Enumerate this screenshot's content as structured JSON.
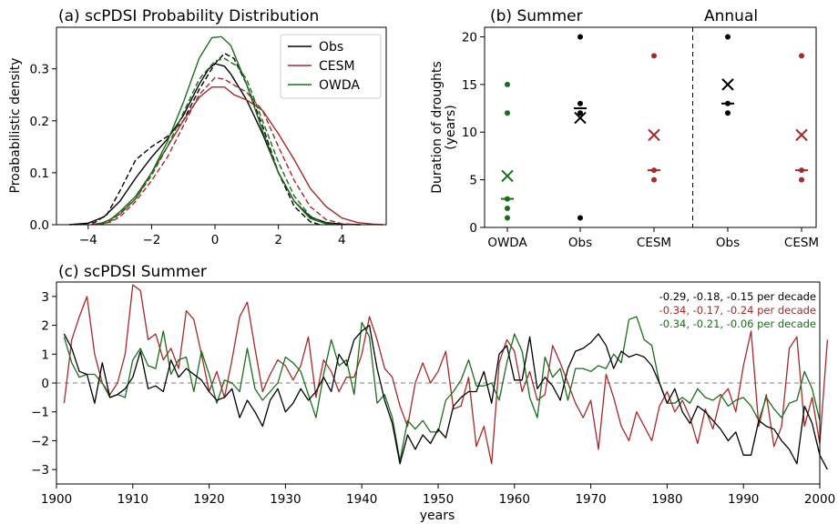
{
  "chart_data": [
    {
      "id": "a",
      "type": "line",
      "title": "(a) scPDSI Probability Distribution",
      "xlabel": "",
      "ylabel": "Proababilistic density",
      "xlim": [
        -5,
        5.4
      ],
      "ylim": [
        0,
        0.38
      ],
      "xticks": [
        -4,
        -2,
        0,
        2,
        4
      ],
      "yticks": [
        0.0,
        0.1,
        0.2,
        0.3
      ],
      "legend_position": "top-right",
      "legend": [
        {
          "name": "Obs",
          "color": "#000000"
        },
        {
          "name": "CESM",
          "color": "#a52a2a"
        },
        {
          "name": "OWDA",
          "color": "#1a6e1a"
        }
      ],
      "series": [
        {
          "name": "Obs",
          "style": "solid",
          "color": "#000000",
          "x": [
            -4.6,
            -4,
            -3.5,
            -3,
            -2.5,
            -2,
            -1.5,
            -1,
            -0.5,
            -0.2,
            0,
            0.3,
            0.5,
            1,
            1.5,
            2,
            2.5,
            3,
            3.5,
            4,
            4.6
          ],
          "y": [
            0,
            0.003,
            0.015,
            0.045,
            0.09,
            0.13,
            0.165,
            0.21,
            0.27,
            0.3,
            0.31,
            0.305,
            0.29,
            0.24,
            0.175,
            0.1,
            0.045,
            0.015,
            0.004,
            0.001,
            0
          ]
        },
        {
          "name": "Obs",
          "style": "dashed",
          "color": "#000000",
          "x": [
            -4.4,
            -3.8,
            -3.4,
            -3,
            -2.5,
            -2,
            -1.5,
            -1,
            -0.5,
            0,
            0.3,
            0.6,
            1,
            1.5,
            2,
            2.5,
            3,
            3.3
          ],
          "y": [
            0,
            0.004,
            0.02,
            0.065,
            0.125,
            0.15,
            0.17,
            0.2,
            0.26,
            0.31,
            0.33,
            0.32,
            0.27,
            0.19,
            0.1,
            0.035,
            0.006,
            0
          ]
        },
        {
          "name": "CESM",
          "style": "solid",
          "color": "#a52a2a",
          "x": [
            -3.9,
            -3.5,
            -3,
            -2.5,
            -2,
            -1.5,
            -1,
            -0.5,
            -0.1,
            0.3,
            0.6,
            1,
            1.5,
            2,
            2.5,
            3,
            3.5,
            4,
            4.5,
            5,
            5.3
          ],
          "y": [
            0,
            0.004,
            0.02,
            0.05,
            0.1,
            0.15,
            0.2,
            0.245,
            0.265,
            0.265,
            0.25,
            0.24,
            0.22,
            0.175,
            0.125,
            0.07,
            0.035,
            0.013,
            0.004,
            0.001,
            0
          ]
        },
        {
          "name": "CESM",
          "style": "dashed",
          "color": "#a52a2a",
          "x": [
            -3.7,
            -3.3,
            -3,
            -2.5,
            -2,
            -1.5,
            -1,
            -0.5,
            0,
            0.3,
            0.7,
            1,
            1.5,
            2,
            2.5,
            3,
            3.5,
            4,
            4.5
          ],
          "y": [
            0,
            0.005,
            0.015,
            0.045,
            0.085,
            0.13,
            0.19,
            0.25,
            0.283,
            0.28,
            0.265,
            0.255,
            0.22,
            0.15,
            0.085,
            0.035,
            0.01,
            0.002,
            0
          ]
        },
        {
          "name": "OWDA",
          "style": "solid",
          "color": "#1a6e1a",
          "x": [
            -3.7,
            -3.3,
            -3,
            -2.5,
            -2,
            -1.5,
            -1,
            -0.5,
            -0.1,
            0.2,
            0.5,
            1,
            1.5,
            2,
            2.5,
            3,
            3.5,
            3.9
          ],
          "y": [
            0,
            0.01,
            0.025,
            0.055,
            0.1,
            0.16,
            0.235,
            0.32,
            0.36,
            0.362,
            0.345,
            0.27,
            0.18,
            0.1,
            0.045,
            0.012,
            0.002,
            0
          ]
        },
        {
          "name": "OWDA",
          "style": "dashed",
          "color": "#1a6e1a",
          "x": [
            -3.6,
            -3.2,
            -3,
            -2.5,
            -2,
            -1.5,
            -1,
            -0.5,
            0,
            0.3,
            0.7,
            1,
            1.5,
            2,
            2.5,
            3,
            3.4,
            3.8
          ],
          "y": [
            0,
            0.01,
            0.022,
            0.05,
            0.095,
            0.15,
            0.215,
            0.28,
            0.315,
            0.32,
            0.305,
            0.28,
            0.2,
            0.12,
            0.055,
            0.017,
            0.004,
            0
          ]
        }
      ]
    },
    {
      "id": "b",
      "type": "scatter",
      "title": "(b) Summer",
      "title2": "Annual",
      "xlabel": "",
      "ylabel": "Duration of droughts (years)",
      "ylabel_lines": [
        "Duration of droughts",
        "(years)"
      ],
      "ylim": [
        0,
        21
      ],
      "yticks": [
        0,
        5,
        10,
        15,
        20
      ],
      "categories": [
        "OWDA",
        "Obs",
        "CESM",
        "Obs",
        "CESM"
      ],
      "separator_after_index": 2,
      "groups": [
        {
          "category": "OWDA",
          "color": "#1a6e1a",
          "points": [
            1,
            2,
            3,
            12,
            15
          ],
          "median": 3,
          "mean": 5.4
        },
        {
          "category": "Obs",
          "color": "#000000",
          "points": [
            1,
            12,
            13,
            20
          ],
          "median": 12.5,
          "mean": 11.5
        },
        {
          "category": "CESM",
          "color": "#a52a2a",
          "points": [
            5,
            6,
            18
          ],
          "median": 6,
          "mean": 9.7
        },
        {
          "category": "Obs",
          "color": "#000000",
          "points": [
            12,
            13,
            20
          ],
          "median": 13,
          "mean": 15
        },
        {
          "category": "CESM",
          "color": "#a52a2a",
          "points": [
            5,
            6,
            18
          ],
          "median": 6,
          "mean": 9.7
        }
      ]
    },
    {
      "id": "c",
      "type": "line",
      "title": "(c) scPDSI Summer",
      "xlabel": "years",
      "ylabel": "",
      "xlim": [
        1900,
        2000
      ],
      "ylim": [
        -3.5,
        3.5
      ],
      "xticks": [
        1900,
        1910,
        1920,
        1930,
        1940,
        1950,
        1960,
        1970,
        1980,
        1990,
        2000
      ],
      "yticks": [
        -3,
        -2,
        -1,
        0,
        1,
        2,
        3
      ],
      "zero_line": true,
      "annotations": [
        {
          "text": "-0.29, -0.18, -0.15 per decade",
          "color": "#000000"
        },
        {
          "text": "-0.34, -0.17, -0.24 per decade",
          "color": "#a52a2a"
        },
        {
          "text": "-0.34, -0.21, -0.06 per decade",
          "color": "#1a6e1a"
        }
      ],
      "x_start": 1901,
      "series": [
        {
          "name": "Obs",
          "color": "#000000",
          "values": [
            1.7,
            1.2,
            0.4,
            0.3,
            -0.7,
            0.7,
            -0.5,
            -0.4,
            -0.2,
            0.2,
            1.1,
            -0.2,
            -0.1,
            -0.3,
            0.8,
            0.2,
            0.5,
            0.3,
            0.1,
            -0.3,
            -0.6,
            -0.5,
            -0.2,
            -1.2,
            -0.6,
            -1.0,
            -1.5,
            -0.6,
            -0.2,
            -1.0,
            -0.7,
            -0.2,
            -0.6,
            -0.3,
            0.2,
            -0.3,
            1.0,
            0.6,
            1.5,
            1.8,
            2.0,
            0.5,
            -0.6,
            -1.4,
            -2.8,
            -1.8,
            -2.3,
            -1.8,
            -2.1,
            -1.6,
            -1.9,
            -0.8,
            -0.5,
            -0.3,
            -0.3,
            0.4,
            -0.7,
            1.0,
            1.3,
            0.1,
            0.1,
            1.6,
            -0.2,
            0.2,
            -0.1,
            -0.6,
            0.5,
            1.1,
            1.2,
            1.4,
            1.7,
            1.3,
            0.5,
            1.1,
            0.9,
            1.0,
            0.9,
            0.6,
            0.0,
            -0.7,
            -0.2,
            -1.0,
            -1.4,
            -0.8,
            -1.0,
            -1.3,
            -1.6,
            -2.0,
            -1.7,
            -2.5,
            -2.5,
            -1.3,
            -1.5,
            -1.6,
            -2.0,
            -2.3,
            -2.8,
            -0.8,
            -1.4,
            -2.5,
            -3.0
          ]
        },
        {
          "name": "CESM",
          "color": "#a52a2a",
          "values": [
            -0.7,
            1.5,
            2.3,
            3.0,
            1.0,
            0.0,
            -0.4,
            0.0,
            1.0,
            3.4,
            3.2,
            1.5,
            1.7,
            0.8,
            1.2,
            0.5,
            2.5,
            2.2,
            1.0,
            -0.3,
            0.4,
            -0.5,
            0.8,
            2.3,
            2.8,
            1.2,
            -0.3,
            0.3,
            0.8,
            0.6,
            0.1,
            0.6,
            1.6,
            -0.5,
            0.8,
            0.4,
            -0.3,
            0.2,
            0.2,
            1.0,
            2.3,
            1.5,
            0.5,
            0.2,
            -0.8,
            -1.5,
            0.0,
            0.7,
            0.0,
            0.4,
            1.1,
            -0.9,
            -0.8,
            0.2,
            -2.2,
            -1.5,
            -2.8,
            0.7,
            1.5,
            1.1,
            -0.3,
            0.4,
            -0.6,
            -0.4,
            1.3,
            0.7,
            0.0,
            -0.7,
            -1.2,
            -0.6,
            -2.3,
            0.3,
            -0.5,
            -1.5,
            -2.0,
            -1.0,
            -1.5,
            -2.0,
            -0.8,
            -0.3,
            -1.0,
            -0.6,
            -1.2,
            -2.1,
            -0.9,
            -1.6,
            -0.5,
            -0.2,
            -1.0,
            0.6,
            1.8,
            -1.5,
            -0.4,
            -2.2,
            -1.5,
            1.2,
            1.6,
            -1.5,
            -0.5,
            -2.1,
            1.5
          ]
        },
        {
          "name": "OWDA",
          "color": "#1a6e1a",
          "values": [
            1.6,
            0.7,
            0.2,
            0.3,
            0.3,
            0.0,
            -0.5,
            -0.4,
            -0.5,
            0.8,
            1.2,
            0.6,
            0.5,
            1.8,
            0.3,
            0.8,
            0.9,
            -0.3,
            1.1,
            0.3,
            -0.7,
            0.1,
            0.0,
            -0.3,
            1.2,
            -0.2,
            -0.6,
            -0.3,
            0.0,
            0.9,
            0.7,
            0.4,
            -0.4,
            -1.2,
            0.3,
            1.5,
            0.6,
            0.8,
            -0.4,
            2.1,
            1.6,
            -0.7,
            -0.4,
            -1.2,
            -2.7,
            -1.3,
            -1.6,
            -1.3,
            -1.7,
            -1.7,
            -0.6,
            -0.3,
            0.1,
            0.8,
            -0.1,
            -0.1,
            0.0,
            -0.6,
            0.7,
            1.7,
            1.1,
            -0.5,
            -1.2,
            0.9,
            0.2,
            0.5,
            -0.6,
            0.5,
            0.5,
            0.4,
            0.6,
            0.5,
            1.0,
            0.7,
            2.2,
            2.3,
            1.5,
            1.3,
            0.0,
            -0.7,
            -0.7,
            -0.5,
            -0.7,
            -0.2,
            -0.5,
            -0.6,
            -0.4,
            -0.8,
            -0.6,
            -0.5,
            -0.8,
            -1.3,
            -0.5,
            -0.9,
            -1.2,
            -0.7,
            -0.6,
            0.4,
            -0.2,
            -1.3
          ]
        }
      ]
    }
  ]
}
